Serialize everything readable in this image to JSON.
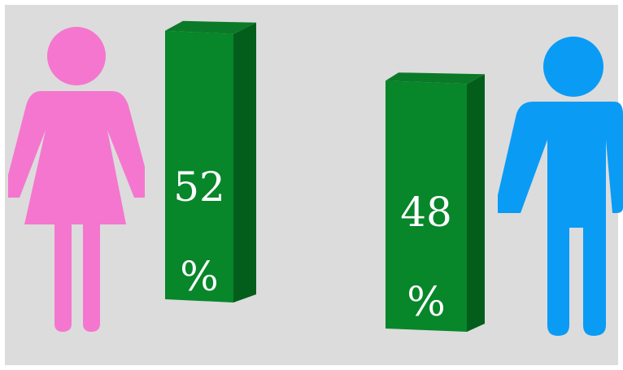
{
  "chart_data": {
    "type": "bar",
    "categories": [
      "female",
      "male"
    ],
    "values": [
      52,
      48
    ],
    "unit": "%",
    "labels": [
      {
        "number": "52",
        "unit": "%"
      },
      {
        "number": "48",
        "unit": "%"
      }
    ],
    "icons": [
      "female-figure-icon",
      "male-figure-icon"
    ]
  },
  "colors": {
    "female": "#f576cf",
    "male": "#0a9bf5",
    "bar_front": "#07862a",
    "bar_side": "#035e1c",
    "bar_top": "#0a7a28",
    "background": "#dcdcdc"
  }
}
